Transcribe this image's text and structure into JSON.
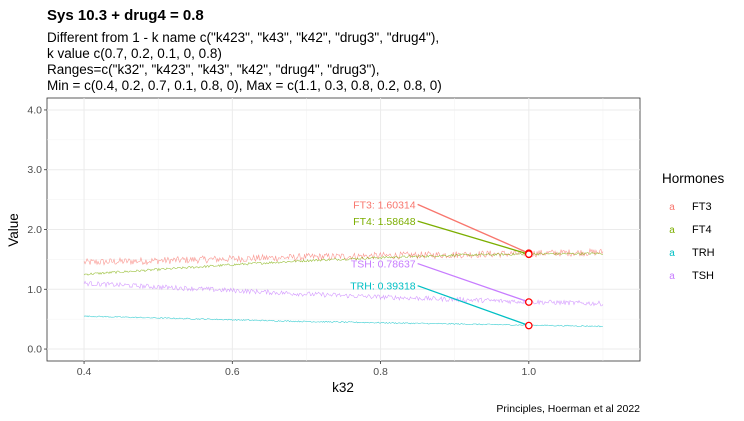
{
  "chart_data": {
    "type": "line",
    "title": "Sys 10.3 + drug4 = 0.8",
    "subtitle_lines": [
      "Different from 1 - k name c(\"k423\", \"k43\", \"k42\", \"drug3\", \"drug4\"),",
      "k value c(0.7, 0.2, 0.1, 0, 0.8)",
      "Ranges=c(\"k32\", \"k423\", \"k43\", \"k42\", \"drug4\", \"drug3\"),",
      "Min = c(0.4, 0.2, 0.7, 0.1, 0.8, 0), Max = c(1.1, 0.3, 0.8, 0.2, 0.8, 0)"
    ],
    "xlabel": "k32",
    "ylabel": "Value",
    "xlim": [
      0.35,
      1.15
    ],
    "ylim": [
      -0.2,
      4.2
    ],
    "x_ticks": [
      "0.4",
      "0.6",
      "0.8",
      "1.0"
    ],
    "x_tick_values": [
      0.4,
      0.6,
      0.8,
      1.0
    ],
    "y_ticks": [
      "0.0",
      "1.0",
      "2.0",
      "3.0",
      "4.0"
    ],
    "y_tick_values": [
      0,
      1,
      2,
      3,
      4
    ],
    "grid": true,
    "legend": {
      "title": "Hormones",
      "position": "right",
      "entries": [
        "FT3",
        "FT4",
        "TRH",
        "TSH"
      ],
      "key_glyph": "a"
    },
    "series": [
      {
        "name": "FT3",
        "color": "#F8766D",
        "x": [
          0.4,
          0.5,
          0.6,
          0.7,
          0.8,
          0.9,
          1.0,
          1.1
        ],
        "values": [
          1.45,
          1.48,
          1.51,
          1.54,
          1.56,
          1.58,
          1.6,
          1.62
        ],
        "noise": 0.06
      },
      {
        "name": "FT4",
        "color": "#7CAE00",
        "x": [
          0.4,
          0.5,
          0.6,
          0.7,
          0.8,
          0.9,
          1.0,
          1.1
        ],
        "values": [
          1.25,
          1.33,
          1.41,
          1.48,
          1.53,
          1.57,
          1.59,
          1.6
        ],
        "noise": 0.02
      },
      {
        "name": "TRH",
        "color": "#00BFC4",
        "x": [
          0.4,
          0.5,
          0.6,
          0.7,
          0.8,
          0.9,
          1.0,
          1.1
        ],
        "values": [
          0.55,
          0.52,
          0.49,
          0.46,
          0.44,
          0.42,
          0.4,
          0.38
        ],
        "noise": 0.01
      },
      {
        "name": "TSH",
        "color": "#C77CFF",
        "x": [
          0.4,
          0.5,
          0.6,
          0.7,
          0.8,
          0.9,
          1.0,
          1.1
        ],
        "values": [
          1.1,
          1.04,
          0.98,
          0.92,
          0.87,
          0.83,
          0.79,
          0.76
        ],
        "noise": 0.04
      }
    ],
    "highlight_points": [
      {
        "series": "FT3",
        "x": 1.0,
        "y": 1.60314
      },
      {
        "series": "FT4",
        "x": 1.0,
        "y": 1.58648
      },
      {
        "series": "TSH",
        "x": 1.0,
        "y": 0.78637
      },
      {
        "series": "TRH",
        "x": 1.0,
        "y": 0.39318
      }
    ],
    "annotations": [
      {
        "series": "FT3",
        "text": "FT3: 1.60314",
        "x": 0.85,
        "y": 2.42,
        "color": "#F8766D"
      },
      {
        "series": "FT4",
        "text": "FT4: 1.58648",
        "x": 0.85,
        "y": 2.14,
        "color": "#7CAE00"
      },
      {
        "series": "TSH",
        "text": "TSH: 0.78637",
        "x": 0.85,
        "y": 1.43,
        "color": "#C77CFF"
      },
      {
        "series": "TRH",
        "text": "TRH: 0.39318",
        "x": 0.85,
        "y": 1.06,
        "color": "#00BFC4"
      }
    ],
    "highlight_color": "#FF0000",
    "caption": "Principles, Hoerman et al 2022"
  }
}
